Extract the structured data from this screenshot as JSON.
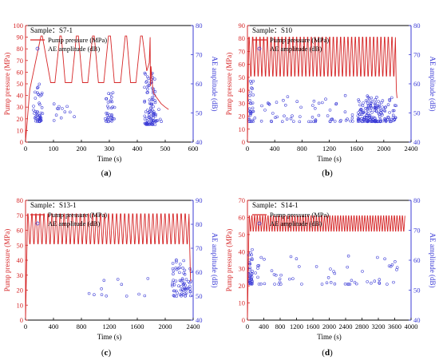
{
  "chart_data": [
    {
      "panel_label": "(a)",
      "type": "line",
      "sample_label": "Sample：S7-1",
      "xlabel": "Time (s)",
      "ylabel_left": "Pump pressure (MPa)",
      "ylabel_right": "AE amplitude (dB)",
      "xlim": [
        0,
        600
      ],
      "ylim_left": [
        0,
        100
      ],
      "ylim_right": [
        40,
        80
      ],
      "x_ticks": [
        0,
        100,
        200,
        300,
        400,
        500,
        600
      ],
      "y_ticks_left": [
        0,
        10,
        20,
        30,
        40,
        50,
        60,
        70,
        80,
        90,
        100
      ],
      "y_ticks_right": [
        40,
        50,
        60,
        70,
        80
      ],
      "series": [
        {
          "name": "Pump pressure (MPa)",
          "axis": "left",
          "style": "line",
          "color": "#d62728",
          "x": [
            0,
            15,
            55,
            60,
            90,
            105,
            123,
            128,
            142,
            165,
            182,
            189,
            204,
            223,
            240,
            246,
            261,
            280,
            297,
            304,
            318,
            340,
            357,
            362,
            376,
            395,
            412,
            418,
            434,
            443,
            446,
            447,
            449,
            453,
            458,
            470,
            485,
            500,
            512
          ],
          "y": [
            0,
            45,
            91,
            91,
            51,
            51,
            91,
            91,
            51,
            51,
            91,
            91,
            51,
            51,
            91,
            91,
            51,
            51,
            91,
            91,
            51,
            51,
            91,
            91,
            51,
            51,
            91,
            91,
            61,
            68,
            90,
            48,
            65,
            51,
            42,
            38,
            33,
            30,
            28
          ]
        },
        {
          "name": "AE amplitude (dB)",
          "axis": "right",
          "style": "scatter",
          "color": "#4c4cd8",
          "clusters": [
            {
              "x_min": 28,
              "x_max": 62,
              "y_min": 47,
              "y_max": 60,
              "count": 45
            },
            {
              "x_min": 95,
              "x_max": 175,
              "y_min": 47,
              "y_max": 54,
              "count": 12
            },
            {
              "x_min": 285,
              "x_max": 320,
              "y_min": 47,
              "y_max": 57,
              "count": 35
            },
            {
              "x_min": 425,
              "x_max": 465,
              "y_min": 46,
              "y_max": 64,
              "count": 90
            },
            {
              "x_min": 465,
              "x_max": 490,
              "y_min": 47,
              "y_max": 52,
              "count": 8
            }
          ]
        }
      ]
    },
    {
      "panel_label": "(b)",
      "type": "line",
      "sample_label": "Sample：S10",
      "xlabel": "Time (s)",
      "ylabel_left": "Pump pressure (MPa)",
      "ylabel_right": "AE amplitude (dB)",
      "xlim": [
        0,
        2400
      ],
      "ylim_left": [
        0,
        90
      ],
      "ylim_right": [
        40,
        80
      ],
      "x_ticks": [
        0,
        400,
        800,
        1200,
        1600,
        2000,
        2400
      ],
      "y_ticks_left": [
        0,
        10,
        20,
        30,
        40,
        50,
        60,
        70,
        80,
        90
      ],
      "y_ticks_right": [
        40,
        50,
        60,
        70,
        80
      ],
      "oscillation": {
        "x_start": 20,
        "x_end": 2170,
        "y_low": 51,
        "y_high": 81,
        "cycles": 40
      },
      "series": [
        {
          "name": "Pump pressure (MPa)",
          "axis": "left",
          "style": "line",
          "color": "#d62728",
          "x": [
            0,
            20,
            2170,
            2180,
            2185,
            2190,
            2195
          ],
          "y": [
            0,
            81,
            81,
            51,
            40,
            36,
            34
          ]
        },
        {
          "name": "AE amplitude (dB)",
          "axis": "right",
          "style": "scatter",
          "color": "#4c4cd8",
          "clusters": [
            {
              "x_min": 20,
              "x_max": 90,
              "y_min": 47,
              "y_max": 62,
              "count": 30
            },
            {
              "x_min": 100,
              "x_max": 1600,
              "y_min": 47,
              "y_max": 56,
              "count": 60
            },
            {
              "x_min": 1620,
              "x_max": 1900,
              "y_min": 47,
              "y_max": 56,
              "count": 110
            },
            {
              "x_min": 1900,
              "x_max": 2180,
              "y_min": 47,
              "y_max": 56,
              "count": 60
            }
          ]
        }
      ]
    },
    {
      "panel_label": "(c)",
      "type": "line",
      "sample_label": "Sample：S13-1",
      "xlabel": "Time (s)",
      "ylabel_left": "Pump pressure (MPa)",
      "ylabel_right": "AE amplitude (dB)",
      "xlim": [
        0,
        2400
      ],
      "ylim_left": [
        0,
        80
      ],
      "ylim_right": [
        40,
        90
      ],
      "x_ticks": [
        0,
        400,
        800,
        1200,
        1600,
        2000,
        2400
      ],
      "y_ticks_left": [
        0,
        10,
        20,
        30,
        40,
        50,
        60,
        70,
        80
      ],
      "y_ticks_right": [
        40,
        50,
        60,
        70,
        80,
        90
      ],
      "oscillation": {
        "x_start": 30,
        "x_end": 2340,
        "y_low": 51,
        "y_high": 71,
        "cycles": 40
      },
      "series": [
        {
          "name": "Pump pressure (MPa)",
          "axis": "left",
          "style": "line",
          "color": "#d62728",
          "x": [
            0,
            30,
            2340,
            2350,
            2355,
            2360,
            2365
          ],
          "y": [
            0,
            71,
            71,
            51,
            40,
            30,
            26
          ]
        },
        {
          "name": "AE amplitude (dB)",
          "axis": "right",
          "style": "scatter",
          "color": "#4c4cd8",
          "clusters": [
            {
              "x_min": 150,
              "x_max": 1800,
              "y_min": 50,
              "y_max": 58,
              "count": 12
            },
            {
              "x_min": 2100,
              "x_max": 2380,
              "y_min": 50,
              "y_max": 66,
              "count": 70
            }
          ]
        }
      ]
    },
    {
      "panel_label": "(d)",
      "type": "line",
      "sample_label": "Sample：S14-1",
      "xlabel": "Time (s)",
      "ylabel_left": "Pump pressure (MPa)",
      "ylabel_right": "AE amplitude (dB)",
      "xlim": [
        0,
        4000
      ],
      "ylim_left": [
        0,
        70
      ],
      "ylim_right": [
        40,
        80
      ],
      "x_ticks": [
        0,
        400,
        800,
        1200,
        1600,
        2000,
        2400,
        2800,
        3200,
        3600,
        4000
      ],
      "y_ticks_left": [
        0,
        10,
        20,
        30,
        40,
        50,
        60,
        70
      ],
      "y_ticks_right": [
        40,
        50,
        60,
        70,
        80
      ],
      "oscillation": {
        "x_start": 40,
        "x_end": 3850,
        "y_low": 52,
        "y_high": 61,
        "cycles": 58
      },
      "series": [
        {
          "name": "Pump pressure (MPa)",
          "axis": "left",
          "style": "line",
          "color": "#d62728",
          "x": [
            0,
            40,
            3850
          ],
          "y": [
            0,
            61,
            61
          ]
        },
        {
          "name": "AE amplitude (dB)",
          "axis": "right",
          "style": "scatter",
          "color": "#4c4cd8",
          "clusters": [
            {
              "x_min": 20,
              "x_max": 120,
              "y_min": 52,
              "y_max": 65,
              "count": 40
            },
            {
              "x_min": 120,
              "x_max": 3850,
              "y_min": 52,
              "y_max": 62,
              "count": 60
            }
          ]
        }
      ]
    }
  ]
}
